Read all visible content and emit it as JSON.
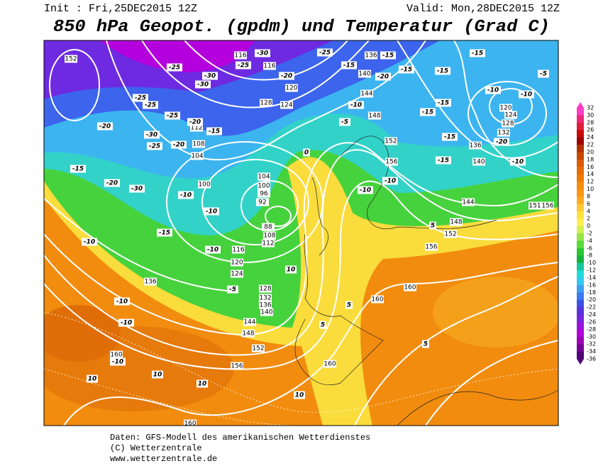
{
  "header": {
    "init": "Init : Fri,25DEC2015 12Z",
    "valid": "Valid: Mon,28DEC2015 12Z",
    "title": "850 hPa Geopot. (gpdm) und Temperatur (Grad C)"
  },
  "scale": {
    "labels": [
      32,
      30,
      28,
      26,
      24,
      22,
      20,
      18,
      16,
      14,
      12,
      10,
      8,
      6,
      4,
      2,
      0,
      -2,
      -4,
      -6,
      -8,
      -10,
      -12,
      -14,
      -16,
      -18,
      -20,
      -22,
      -24,
      -26,
      -28,
      -30,
      -32,
      -34,
      -36
    ],
    "colors": [
      "#ff3cc8",
      "#f0287a",
      "#e01e3c",
      "#c80a0a",
      "#a00000",
      "#b43200",
      "#c84600",
      "#dc5a00",
      "#e66e00",
      "#f07800",
      "#f58c0a",
      "#fa9614",
      "#ffaa1e",
      "#ffc832",
      "#ffe13c",
      "#fff050",
      "#d2f050",
      "#96e646",
      "#5adc3c",
      "#28c832",
      "#14b43c",
      "#14c8a0",
      "#1edcdc",
      "#32c8f0",
      "#3ca0f0",
      "#3c78f0",
      "#3c50e6",
      "#5a32dc",
      "#7828dc",
      "#9614dc",
      "#b400dc",
      "#a000b4",
      "#780096",
      "#500078"
    ]
  },
  "geopotential_labels": [
    152,
    136,
    140,
    144,
    148,
    152,
    156,
    120,
    124,
    128,
    132,
    136,
    140,
    144,
    148,
    152,
    156,
    160,
    160,
    116,
    116,
    120,
    124,
    128,
    112,
    108,
    104,
    100,
    104,
    100,
    96,
    92,
    88,
    108,
    112,
    116,
    120,
    124,
    128,
    132,
    136,
    140,
    144,
    148,
    152,
    156,
    160,
    160,
    160,
    136,
    151,
    156
  ],
  "temperature_labels": [
    -25,
    -30,
    -25,
    -15,
    -15,
    -15,
    -15,
    -5,
    -25,
    -30,
    -30,
    -20,
    -15,
    -20,
    -25,
    -25,
    -25,
    -20,
    -15,
    -20,
    -30,
    -25,
    -20,
    -10,
    -10,
    -10,
    -5,
    -15,
    -15,
    -15,
    -20,
    -10,
    -15,
    -10,
    -10,
    -15,
    -20,
    -30,
    -10,
    -10,
    -15,
    -10,
    -10,
    -5,
    -10,
    -10,
    -10,
    0,
    5,
    5,
    5,
    5,
    10,
    10,
    10,
    10,
    10
  ],
  "footer": {
    "line1": "Daten: GFS-Modell des amerikanischen Wetterdienstes",
    "line2": "(C) Wetterzentrale",
    "line3": "www.wetterzentrale.de"
  }
}
